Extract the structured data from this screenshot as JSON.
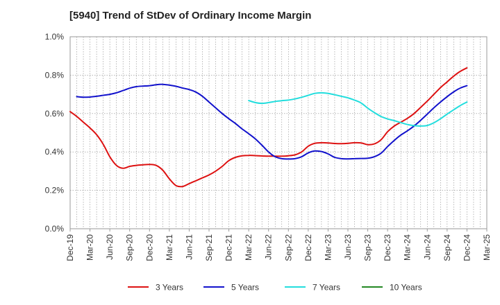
{
  "chart_data": {
    "type": "line",
    "title": "[5940]  Trend of StDev of Ordinary Income Margin",
    "xlabel": "",
    "ylabel": "",
    "x_start": "Dec-19",
    "x_end": "Mar-25",
    "x_tick_labels": [
      "Dec-19",
      "Mar-20",
      "Jun-20",
      "Sep-20",
      "Dec-20",
      "Mar-21",
      "Jun-21",
      "Sep-21",
      "Dec-21",
      "Mar-22",
      "Jun-22",
      "Sep-22",
      "Dec-22",
      "Mar-23",
      "Jun-23",
      "Sep-23",
      "Dec-23",
      "Mar-24",
      "Jun-24",
      "Sep-24",
      "Dec-24",
      "Mar-25"
    ],
    "y_tick_labels": [
      "0.0%",
      "0.2%",
      "0.4%",
      "0.6%",
      "0.8%",
      "1.0%"
    ],
    "ylim": [
      0,
      1.0
    ],
    "y_unit": "%",
    "grid": true,
    "legend_position": "bottom",
    "series": [
      {
        "name": "3 Years",
        "color": "#dd1111",
        "points": [
          [
            "Dec-19",
            0.61
          ],
          [
            "Jan-20",
            0.585
          ],
          [
            "Feb-20",
            0.555
          ],
          [
            "Mar-20",
            0.525
          ],
          [
            "Apr-20",
            0.49
          ],
          [
            "May-20",
            0.44
          ],
          [
            "Jun-20",
            0.375
          ],
          [
            "Jul-20",
            0.33
          ],
          [
            "Aug-20",
            0.315
          ],
          [
            "Sep-20",
            0.325
          ],
          [
            "Oct-20",
            0.33
          ],
          [
            "Nov-20",
            0.333
          ],
          [
            "Dec-20",
            0.335
          ],
          [
            "Jan-21",
            0.33
          ],
          [
            "Feb-21",
            0.305
          ],
          [
            "Mar-21",
            0.26
          ],
          [
            "Apr-21",
            0.225
          ],
          [
            "May-21",
            0.22
          ],
          [
            "Jun-21",
            0.235
          ],
          [
            "Jul-21",
            0.25
          ],
          [
            "Aug-21",
            0.265
          ],
          [
            "Sep-21",
            0.28
          ],
          [
            "Oct-21",
            0.3
          ],
          [
            "Nov-21",
            0.325
          ],
          [
            "Dec-21",
            0.355
          ],
          [
            "Jan-22",
            0.372
          ],
          [
            "Feb-22",
            0.38
          ],
          [
            "Mar-22",
            0.382
          ],
          [
            "Apr-22",
            0.381
          ],
          [
            "May-22",
            0.379
          ],
          [
            "Jun-22",
            0.378
          ],
          [
            "Jul-22",
            0.378
          ],
          [
            "Aug-22",
            0.378
          ],
          [
            "Sep-22",
            0.38
          ],
          [
            "Oct-22",
            0.385
          ],
          [
            "Nov-22",
            0.4
          ],
          [
            "Dec-22",
            0.43
          ],
          [
            "Jan-23",
            0.445
          ],
          [
            "Feb-23",
            0.448
          ],
          [
            "Mar-23",
            0.447
          ],
          [
            "Apr-23",
            0.444
          ],
          [
            "May-23",
            0.443
          ],
          [
            "Jun-23",
            0.445
          ],
          [
            "Jul-23",
            0.448
          ],
          [
            "Aug-23",
            0.447
          ],
          [
            "Sep-23",
            0.438
          ],
          [
            "Oct-23",
            0.442
          ],
          [
            "Nov-23",
            0.463
          ],
          [
            "Dec-23",
            0.505
          ],
          [
            "Jan-24",
            0.535
          ],
          [
            "Feb-24",
            0.555
          ],
          [
            "Mar-24",
            0.575
          ],
          [
            "Apr-24",
            0.6
          ],
          [
            "May-24",
            0.632
          ],
          [
            "Jun-24",
            0.665
          ],
          [
            "Jul-24",
            0.7
          ],
          [
            "Aug-24",
            0.735
          ],
          [
            "Sep-24",
            0.765
          ],
          [
            "Oct-24",
            0.795
          ],
          [
            "Nov-24",
            0.82
          ],
          [
            "Dec-24",
            0.838
          ]
        ]
      },
      {
        "name": "5 Years",
        "color": "#1111cc",
        "points": [
          [
            "Dec-19",
            null
          ],
          [
            "Jan-20",
            0.688
          ],
          [
            "Feb-20",
            0.685
          ],
          [
            "Mar-20",
            0.686
          ],
          [
            "Apr-20",
            0.69
          ],
          [
            "May-20",
            0.695
          ],
          [
            "Jun-20",
            0.7
          ],
          [
            "Jul-20",
            0.708
          ],
          [
            "Aug-20",
            0.72
          ],
          [
            "Sep-20",
            0.732
          ],
          [
            "Oct-20",
            0.74
          ],
          [
            "Nov-20",
            0.743
          ],
          [
            "Dec-20",
            0.745
          ],
          [
            "Jan-21",
            0.75
          ],
          [
            "Feb-21",
            0.752
          ],
          [
            "Mar-21",
            0.748
          ],
          [
            "Apr-21",
            0.742
          ],
          [
            "May-21",
            0.733
          ],
          [
            "Jun-21",
            0.725
          ],
          [
            "Jul-21",
            0.712
          ],
          [
            "Aug-21",
            0.69
          ],
          [
            "Sep-21",
            0.66
          ],
          [
            "Oct-21",
            0.63
          ],
          [
            "Nov-21",
            0.6
          ],
          [
            "Dec-21",
            0.573
          ],
          [
            "Jan-22",
            0.548
          ],
          [
            "Feb-22",
            0.52
          ],
          [
            "Mar-22",
            0.495
          ],
          [
            "Apr-22",
            0.468
          ],
          [
            "May-22",
            0.435
          ],
          [
            "Jun-22",
            0.4
          ],
          [
            "Jul-22",
            0.375
          ],
          [
            "Aug-22",
            0.365
          ],
          [
            "Sep-22",
            0.363
          ],
          [
            "Oct-22",
            0.365
          ],
          [
            "Nov-22",
            0.375
          ],
          [
            "Dec-22",
            0.395
          ],
          [
            "Jan-23",
            0.405
          ],
          [
            "Feb-23",
            0.402
          ],
          [
            "Mar-23",
            0.39
          ],
          [
            "Apr-23",
            0.372
          ],
          [
            "May-23",
            0.365
          ],
          [
            "Jun-23",
            0.364
          ],
          [
            "Jul-23",
            0.365
          ],
          [
            "Aug-23",
            0.366
          ],
          [
            "Sep-23",
            0.367
          ],
          [
            "Oct-23",
            0.375
          ],
          [
            "Nov-23",
            0.393
          ],
          [
            "Dec-23",
            0.428
          ],
          [
            "Jan-24",
            0.46
          ],
          [
            "Feb-24",
            0.488
          ],
          [
            "Mar-24",
            0.51
          ],
          [
            "Apr-24",
            0.535
          ],
          [
            "May-24",
            0.565
          ],
          [
            "Jun-24",
            0.597
          ],
          [
            "Jul-24",
            0.63
          ],
          [
            "Aug-24",
            0.66
          ],
          [
            "Sep-24",
            0.688
          ],
          [
            "Oct-24",
            0.713
          ],
          [
            "Nov-24",
            0.733
          ],
          [
            "Dec-24",
            0.745
          ]
        ]
      },
      {
        "name": "7 Years",
        "color": "#22dddd",
        "points": [
          [
            "Mar-22",
            0.668
          ],
          [
            "Apr-22",
            0.657
          ],
          [
            "May-22",
            0.653
          ],
          [
            "Jun-22",
            0.657
          ],
          [
            "Jul-22",
            0.663
          ],
          [
            "Aug-22",
            0.667
          ],
          [
            "Sep-22",
            0.67
          ],
          [
            "Oct-22",
            0.676
          ],
          [
            "Nov-22",
            0.685
          ],
          [
            "Dec-22",
            0.695
          ],
          [
            "Jan-23",
            0.705
          ],
          [
            "Feb-23",
            0.708
          ],
          [
            "Mar-23",
            0.705
          ],
          [
            "Apr-23",
            0.698
          ],
          [
            "May-23",
            0.69
          ],
          [
            "Jun-23",
            0.682
          ],
          [
            "Jul-23",
            0.67
          ],
          [
            "Aug-23",
            0.655
          ],
          [
            "Sep-23",
            0.628
          ],
          [
            "Oct-23",
            0.605
          ],
          [
            "Nov-23",
            0.585
          ],
          [
            "Dec-23",
            0.572
          ],
          [
            "Jan-24",
            0.563
          ],
          [
            "Feb-24",
            0.553
          ],
          [
            "Mar-24",
            0.543
          ],
          [
            "Apr-24",
            0.537
          ],
          [
            "May-24",
            0.535
          ],
          [
            "Jun-24",
            0.538
          ],
          [
            "Jul-24",
            0.552
          ],
          [
            "Aug-24",
            0.573
          ],
          [
            "Sep-24",
            0.597
          ],
          [
            "Oct-24",
            0.62
          ],
          [
            "Nov-24",
            0.642
          ],
          [
            "Dec-24",
            0.66
          ]
        ]
      },
      {
        "name": "10 Years",
        "color": "#228822",
        "points": []
      }
    ]
  }
}
